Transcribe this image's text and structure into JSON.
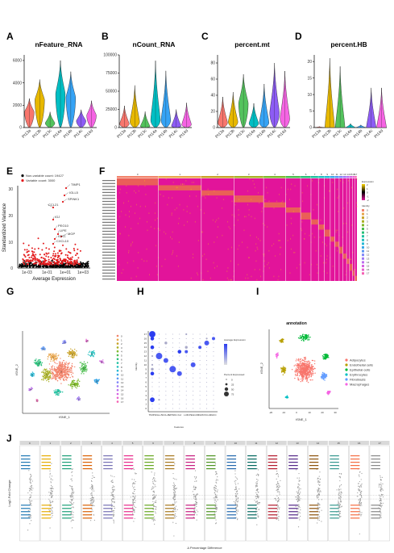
{
  "panel_labels": {
    "A": "A",
    "B": "B",
    "C": "C",
    "D": "D",
    "E": "E",
    "F": "F",
    "G": "G",
    "H": "H",
    "I": "I",
    "J": "J"
  },
  "violin_samples": [
    "Pt13a",
    "Pt13b",
    "Pt13c",
    "Pt14a",
    "Pt14b",
    "Pt14c",
    "Pt14d"
  ],
  "colors": {
    "samples": [
      "#f8766d",
      "#e7b800",
      "#53c35d",
      "#00bfc4",
      "#35a3f5",
      "#8d5cf5",
      "#f564e3"
    ],
    "annotation": [
      "#f8766d",
      "#b79f00",
      "#00ba38",
      "#00bfc4",
      "#619cff",
      "#f564e3"
    ],
    "scatter_red": "#e41a1c",
    "heat_low": "#e2149a",
    "heat_high": "#fbd400"
  },
  "chart_data": [
    {
      "type": "violin",
      "id": "A",
      "title": "nFeature_RNA",
      "categories": [
        "Pt13a",
        "Pt13b",
        "Pt13c",
        "Pt14a",
        "Pt14b",
        "Pt14c",
        "Pt14d"
      ],
      "ylim": [
        0,
        6500
      ],
      "yticks": [
        "0",
        "2000",
        "4000",
        "6000"
      ],
      "ytick_values": [
        0,
        2000,
        4000,
        6000
      ],
      "medians": [
        1400,
        2500,
        400,
        3000,
        2700,
        600,
        1100
      ],
      "maxima": [
        2600,
        4300,
        1400,
        6000,
        5000,
        1600,
        2400
      ]
    },
    {
      "type": "violin",
      "id": "B",
      "title": "nCount_RNA",
      "categories": [
        "Pt13a",
        "Pt13b",
        "Pt13c",
        "Pt14a",
        "Pt14b",
        "Pt14c",
        "Pt14d"
      ],
      "ylim": [
        0,
        100000
      ],
      "yticks": [
        "0",
        "25000",
        "50000",
        "75000",
        "100000"
      ],
      "ytick_values": [
        0,
        25000,
        50000,
        75000,
        100000
      ],
      "medians": [
        5000,
        8000,
        1500,
        10000,
        10000,
        2000,
        4000
      ],
      "maxima": [
        30000,
        58000,
        22000,
        92000,
        78000,
        25000,
        34000
      ]
    },
    {
      "type": "violin",
      "id": "C",
      "title": "percent.mt",
      "categories": [
        "Pt13a",
        "Pt13b",
        "Pt13c",
        "Pt14a",
        "Pt14b",
        "Pt14c",
        "Pt14d"
      ],
      "ylim": [
        0,
        90
      ],
      "yticks": [
        "0",
        "20",
        "40",
        "60",
        "80"
      ],
      "ytick_values": [
        0,
        20,
        40,
        60,
        80
      ],
      "medians": [
        6,
        7,
        30,
        5,
        6,
        18,
        11
      ],
      "maxima": [
        38,
        44,
        66,
        30,
        54,
        80,
        70
      ]
    },
    {
      "type": "violin",
      "id": "D",
      "title": "percent.HB",
      "categories": [
        "Pt13a",
        "Pt13b",
        "Pt13c",
        "Pt14a",
        "Pt14b",
        "Pt14c",
        "Pt14d"
      ],
      "ylim": [
        0,
        22
      ],
      "yticks": [
        "0",
        "5",
        "10",
        "15",
        "20"
      ],
      "ytick_values": [
        0,
        5,
        10,
        15,
        20
      ],
      "medians": [
        0,
        0,
        0,
        0,
        0,
        0,
        0
      ],
      "maxima": [
        0.3,
        21,
        18.5,
        1.2,
        0.8,
        12,
        12
      ]
    },
    {
      "type": "scatter",
      "id": "E",
      "legend": [
        "Non-variable count: 19427",
        "Variable count: 3000"
      ],
      "xlabel": "Average Expression",
      "ylabel": "Standardized Variance",
      "xticks": [
        "1e-03",
        "1e-01",
        "1e+01",
        "1e+03"
      ],
      "yticks": [
        "0",
        "10",
        "20",
        "30"
      ],
      "labeled_genes": [
        "TIMP1",
        "IGLL5",
        "SPINK1",
        "CCL21",
        "IGJ",
        "PEG10",
        "LIPE",
        "MGP",
        "IGKC",
        "CXCL10"
      ]
    },
    {
      "type": "heatmap",
      "id": "F",
      "legend_title_1": "Expression",
      "legend_ticks": [
        "2",
        "1",
        "0",
        "-1",
        "-2"
      ],
      "legend_title_2": "Identity",
      "clusters": [
        "0",
        "1",
        "2",
        "3",
        "4",
        "5",
        "6",
        "7",
        "8",
        "9",
        "10",
        "11",
        "12",
        "13",
        "14",
        "15",
        "16",
        "17"
      ]
    },
    {
      "type": "scatter",
      "id": "G",
      "xlabel": "tSNE_1",
      "ylabel": "tSNE_2",
      "clusters": [
        "0",
        "1",
        "2",
        "3",
        "4",
        "5",
        "6",
        "7",
        "8",
        "9",
        "10",
        "11",
        "12",
        "13",
        "14",
        "15",
        "16",
        "17"
      ]
    },
    {
      "type": "scatter",
      "id": "H",
      "xlabel": "Features",
      "ylabel": "Identity",
      "features": [
        "TIMP1",
        "IGLL5",
        "CCL21",
        "SPINK1",
        "IGJ",
        "LUM",
        "PEG10",
        "MGP",
        "CXCL10",
        "IGKC"
      ],
      "legend_title_1": "Average Expression",
      "legend_title_2": "Percent Expressed",
      "pct_levels": [
        "0",
        "25",
        "50",
        "75"
      ]
    },
    {
      "type": "scatter",
      "id": "I",
      "title": "annotation",
      "xlabel": "tSNE_1",
      "ylabel": "tSNE_2",
      "xticks": [
        "-20",
        "-10",
        "0",
        "10",
        "20",
        "30"
      ],
      "legend": [
        "Adipocytes",
        "Endothelial cells",
        "Epithelial cells",
        "Erythrocytes",
        "Fibroblasts",
        "Macrophages"
      ]
    },
    {
      "type": "scatter",
      "id": "J",
      "ylabel": "Log2-Fold Change",
      "xlabel": "Δ Percentage Difference",
      "clusters": [
        "0",
        "1",
        "2",
        "3",
        "4",
        "5",
        "6",
        "7",
        "8",
        "9",
        "10",
        "11",
        "12",
        "13",
        "14",
        "15",
        "16",
        "17"
      ]
    }
  ]
}
